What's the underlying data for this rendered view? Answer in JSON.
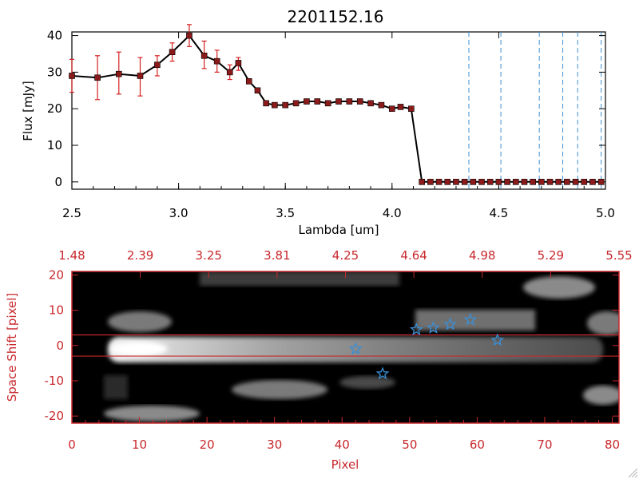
{
  "chart_data": [
    {
      "type": "line",
      "title": "2201152.16",
      "xlabel": "Lambda [um]",
      "ylabel": "Flux [mJy]",
      "xlim": [
        2.5,
        5.0
      ],
      "ylim": [
        -2,
        41
      ],
      "x_ticks": [
        "2.5",
        "3.0",
        "3.5",
        "4.0",
        "4.5",
        "5.0"
      ],
      "y_ticks": [
        "0",
        "10",
        "20",
        "30",
        "40"
      ],
      "series": [
        {
          "name": "flux",
          "color": "#000000",
          "marker_color": "#8b1a1a",
          "x": [
            2.5,
            2.62,
            2.72,
            2.82,
            2.9,
            2.97,
            3.05,
            3.12,
            3.18,
            3.24,
            3.28,
            3.33,
            3.37,
            3.41,
            3.45,
            3.5,
            3.55,
            3.6,
            3.65,
            3.7,
            3.75,
            3.8,
            3.85,
            3.9,
            3.95,
            4.0,
            4.04,
            4.09,
            4.14,
            4.18,
            4.22,
            4.26,
            4.3,
            4.34,
            4.38,
            4.42,
            4.46,
            4.5,
            4.54,
            4.58,
            4.62,
            4.66,
            4.7,
            4.74,
            4.78,
            4.82,
            4.86,
            4.9,
            4.94,
            4.98
          ],
          "y": [
            29,
            28.5,
            29.5,
            29,
            32,
            35.5,
            40,
            34.5,
            33,
            30,
            32.5,
            27.5,
            25,
            21.5,
            21,
            21,
            21.5,
            22,
            22,
            21.5,
            22,
            22,
            22,
            21.5,
            21,
            20,
            20.5,
            20,
            0,
            0,
            0,
            0,
            0,
            0,
            0,
            0,
            0,
            0,
            0,
            0,
            0,
            0,
            0,
            0,
            0,
            0,
            0,
            0,
            0,
            0
          ]
        }
      ],
      "error_bars": [
        {
          "x": 2.5,
          "low": 24.5,
          "high": 33.5
        },
        {
          "x": 2.62,
          "low": 22.5,
          "high": 34.5
        },
        {
          "x": 2.72,
          "low": 24,
          "high": 35.5
        },
        {
          "x": 2.82,
          "low": 23.5,
          "high": 34
        },
        {
          "x": 2.9,
          "low": 29,
          "high": 34.5
        },
        {
          "x": 2.97,
          "low": 33,
          "high": 38
        },
        {
          "x": 3.05,
          "low": 37,
          "high": 43
        },
        {
          "x": 3.12,
          "low": 31,
          "high": 38.5
        },
        {
          "x": 3.18,
          "low": 30,
          "high": 36
        },
        {
          "x": 3.24,
          "low": 28,
          "high": 32
        },
        {
          "x": 3.28,
          "low": 30.5,
          "high": 34
        }
      ],
      "vlines": [
        4.36,
        4.51,
        4.69,
        4.8,
        4.87,
        4.98
      ],
      "vline_color": "#3a8fd6"
    },
    {
      "type": "heatmap",
      "xlabel": "Pixel",
      "ylabel": "Space Shift [pixel]",
      "xlim": [
        0,
        81
      ],
      "ylim": [
        -22,
        21
      ],
      "x_ticks": [
        "0",
        "10",
        "20",
        "30",
        "40",
        "50",
        "60",
        "70",
        "80"
      ],
      "y_ticks": [
        "-20",
        "-10",
        "0",
        "10",
        "20"
      ],
      "top_axis_ticks": [
        "1.48",
        "2.39",
        "3.25",
        "3.81",
        "4.25",
        "4.64",
        "4.98",
        "5.29",
        "5.55"
      ],
      "hlines": [
        3,
        -3
      ],
      "line_color": "#c8282d",
      "axis_color": "#c8282d",
      "stars": [
        {
          "x": 42,
          "y": -1
        },
        {
          "x": 46,
          "y": -8
        },
        {
          "x": 51,
          "y": 4.5
        },
        {
          "x": 53.5,
          "y": 5
        },
        {
          "x": 56,
          "y": 6
        },
        {
          "x": 59,
          "y": 7.3
        },
        {
          "x": 63,
          "y": 1.5
        }
      ],
      "star_color": "#3a8fd6"
    }
  ]
}
